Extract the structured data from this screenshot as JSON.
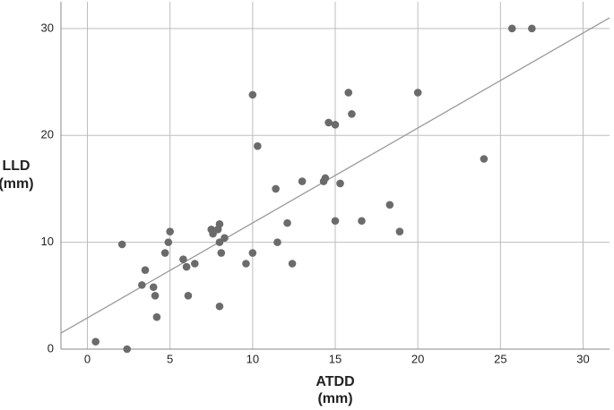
{
  "chart_data": {
    "type": "scatter",
    "xlabel": [
      "ATDD",
      "(mm)"
    ],
    "ylabel": [
      "LLD",
      "(mm)"
    ],
    "xlim": [
      -1.6,
      31.6
    ],
    "ylim": [
      0,
      32.5
    ],
    "xticks": [
      0,
      5,
      10,
      15,
      20,
      25,
      30
    ],
    "yticks": [
      0,
      10,
      20,
      30
    ],
    "grid": true,
    "color": "#6b6b6b",
    "line_color": "#9a9a9a",
    "fit_line": {
      "x": [
        -1.6,
        31.6
      ],
      "y": [
        1.5,
        31.0
      ]
    },
    "x": [
      0.5,
      2.1,
      2.4,
      3.5,
      3.3,
      4.0,
      4.1,
      4.2,
      4.7,
      4.9,
      5.0,
      5.8,
      6.0,
      6.1,
      6.5,
      7.5,
      7.6,
      7.9,
      8.0,
      8.0,
      8.1,
      8.3,
      8.0,
      9.6,
      10.0,
      10.0,
      10.3,
      11.4,
      11.5,
      12.1,
      12.4,
      13.0,
      14.3,
      14.4,
      14.6,
      15.0,
      15.0,
      15.3,
      15.8,
      16.0,
      16.6,
      18.3,
      18.9,
      20.0,
      24.0,
      25.7,
      26.9
    ],
    "y": [
      0.7,
      9.8,
      0,
      7.4,
      6.0,
      5.8,
      5.0,
      3.0,
      9.0,
      10.0,
      11.0,
      8.4,
      7.7,
      5.0,
      8.0,
      11.2,
      10.8,
      11.2,
      11.7,
      10.0,
      9.0,
      10.4,
      4.0,
      8.0,
      9.0,
      23.8,
      19.0,
      15.0,
      10.0,
      11.8,
      8.0,
      15.7,
      15.7,
      16.0,
      21.2,
      21.0,
      12.0,
      15.5,
      24.0,
      22.0,
      12.0,
      13.5,
      11.0,
      24.0,
      17.8,
      30.0,
      30.0
    ]
  }
}
